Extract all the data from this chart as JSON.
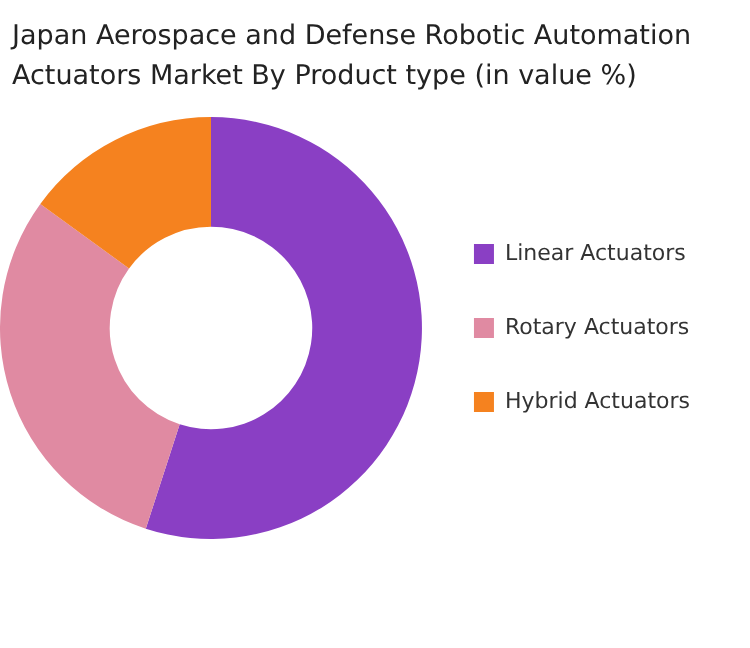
{
  "chart_data": {
    "type": "donut",
    "title": "Japan Aerospace and Defense Robotic Automation Actuators Market By Product type (in value %)",
    "categories": [
      "Linear Actuators",
      "Rotary Actuators",
      "Hybrid Actuators"
    ],
    "values": [
      55,
      30,
      15
    ],
    "colors": [
      "#8a3fc4",
      "#e08aa2",
      "#f5821f"
    ],
    "legend": "right"
  }
}
